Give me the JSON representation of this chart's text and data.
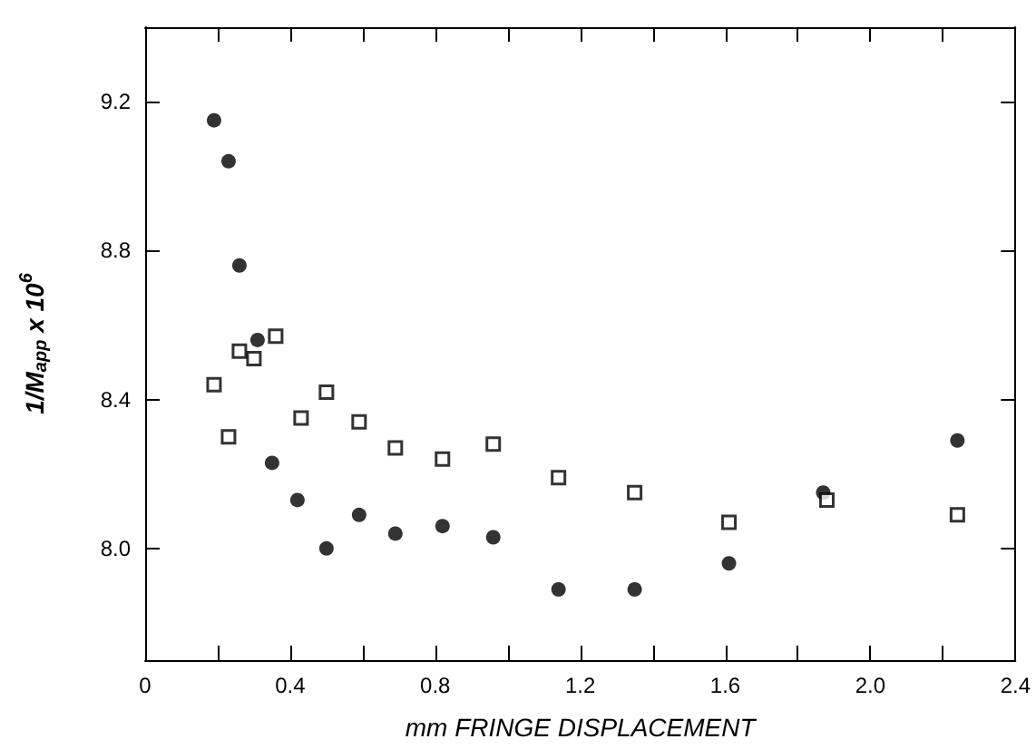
{
  "chart_data": {
    "type": "scatter",
    "xlabel": "mm FRINGE DISPLACEMENT",
    "ylabel": "1/M$_{app}$ x 10$^{6}$",
    "xlim": [
      0,
      2.4
    ],
    "xticks": [
      0,
      {
        "value": 0.2,
        "label": null
      },
      0.4,
      {
        "value": 0.6,
        "label": null
      },
      0.8,
      {
        "value": 1.0,
        "label": null
      },
      1.2,
      {
        "value": 1.4,
        "label": null
      },
      1.6,
      {
        "value": 1.8,
        "label": null
      },
      {
        "value": 2.0,
        "label": "2.0"
      },
      {
        "value": 2.2,
        "label": null
      },
      2.4
    ],
    "ylim": [
      7.7,
      9.4
    ],
    "yticks": [
      {
        "value": 8.0,
        "label": "8.0"
      },
      8.4,
      8.8,
      9.2
    ],
    "grid": false,
    "series": [
      {
        "marker": "circle",
        "color": "#000000",
        "x": [
          0.19,
          0.23,
          0.26,
          0.31,
          0.35,
          0.42,
          0.5,
          0.59,
          0.69,
          0.82,
          0.96,
          1.14,
          1.35,
          1.61,
          1.87,
          2.24
        ],
        "values": [
          9.15,
          9.04,
          8.76,
          8.56,
          8.23,
          8.13,
          8.0,
          8.09,
          8.04,
          8.06,
          8.03,
          7.89,
          7.89,
          7.96,
          8.15,
          8.29
        ]
      },
      {
        "marker": "square",
        "color": "#000000",
        "x": [
          0.19,
          0.23,
          0.26,
          0.3,
          0.36,
          0.43,
          0.5,
          0.59,
          0.69,
          0.82,
          0.96,
          1.14,
          1.35,
          1.61,
          1.88,
          2.24
        ],
        "values": [
          8.44,
          8.3,
          8.53,
          8.51,
          8.57,
          8.35,
          8.42,
          8.34,
          8.27,
          8.24,
          8.28,
          8.19,
          8.15,
          8.07,
          8.13,
          8.09
        ]
      }
    ]
  }
}
